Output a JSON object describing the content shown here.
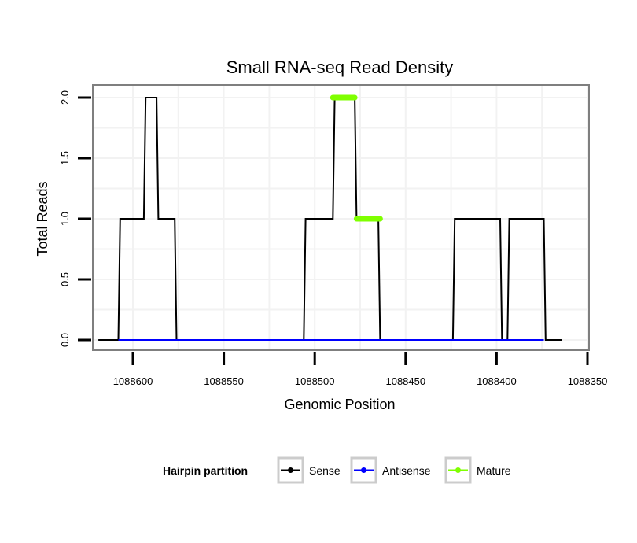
{
  "chart_data": {
    "type": "line",
    "title": "Small RNA-seq Read Density",
    "xlabel": "Genomic Position",
    "ylabel": "Total Reads",
    "xlim": [
      1088625,
      1088352
    ],
    "x_reversed": true,
    "ylim": [
      -0.07,
      2.1
    ],
    "grid": true,
    "x_ticks": [
      1088600,
      1088550,
      1088500,
      1088450,
      1088400,
      1088350
    ],
    "x_tick_labels": [
      "1088600",
      "1088550",
      "1088500",
      "1088450",
      "1088400",
      "1088350"
    ],
    "y_ticks": [
      0.0,
      0.5,
      1.0,
      1.5,
      2.0
    ],
    "y_tick_labels": [
      "0.0",
      "0.5",
      "1.0",
      "1.5",
      "2.0"
    ],
    "series": [
      {
        "name": "Sense",
        "color": "#000000",
        "x": [
          1088619,
          1088608,
          1088607,
          1088594,
          1088593,
          1088587,
          1088586,
          1088577,
          1088576,
          1088506,
          1088505,
          1088490,
          1088489,
          1088478,
          1088477,
          1088465,
          1088464,
          1088424,
          1088423,
          1088398,
          1088397,
          1088394,
          1088393,
          1088374,
          1088373,
          1088364
        ],
        "values": [
          0,
          0,
          1,
          1,
          2,
          2,
          1,
          1,
          0,
          0,
          1,
          1,
          2,
          2,
          1,
          1,
          0,
          0,
          1,
          1,
          0,
          0,
          1,
          1,
          0,
          0
        ]
      },
      {
        "name": "Antisense",
        "color": "#0000ff",
        "x": [
          1088608,
          1088374
        ],
        "values": [
          0,
          0
        ]
      },
      {
        "name": "Mature",
        "color": "#7fff00",
        "segments": [
          {
            "x": [
              1088490,
              1088478
            ],
            "values": [
              2,
              2
            ]
          },
          {
            "x": [
              1088477,
              1088464
            ],
            "values": [
              1,
              1
            ]
          }
        ]
      }
    ],
    "legend": {
      "title": "Hairpin partition",
      "entries": [
        "Sense",
        "Antisense",
        "Mature"
      ],
      "placement": "bottom"
    }
  }
}
